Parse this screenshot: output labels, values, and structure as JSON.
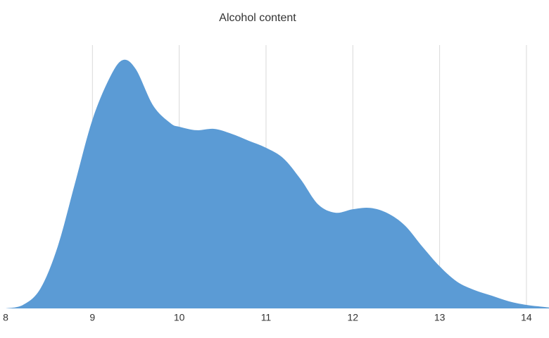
{
  "chart_data": {
    "type": "area",
    "title": "Alcohol content",
    "x": [
      8,
      8.2,
      8.4,
      8.6,
      8.8,
      9.0,
      9.2,
      9.35,
      9.5,
      9.7,
      9.9,
      10.0,
      10.2,
      10.4,
      10.6,
      10.8,
      11.0,
      11.2,
      11.4,
      11.6,
      11.8,
      12.0,
      12.2,
      12.4,
      12.6,
      12.8,
      13.0,
      13.2,
      13.4,
      13.6,
      13.8,
      14.0,
      14.26
    ],
    "values": [
      0,
      0.008,
      0.045,
      0.141,
      0.286,
      0.43,
      0.526,
      0.566,
      0.545,
      0.462,
      0.422,
      0.414,
      0.406,
      0.409,
      0.398,
      0.382,
      0.366,
      0.342,
      0.294,
      0.237,
      0.218,
      0.226,
      0.229,
      0.217,
      0.189,
      0.141,
      0.096,
      0.061,
      0.042,
      0.029,
      0.016,
      0.008,
      0.002
    ],
    "color": "#5b9bd5",
    "xlim": [
      8,
      14.26
    ],
    "xticks": [
      8,
      9,
      10,
      11,
      12,
      13,
      14
    ],
    "ylim": [
      0,
      0.6
    ],
    "grid": true
  }
}
